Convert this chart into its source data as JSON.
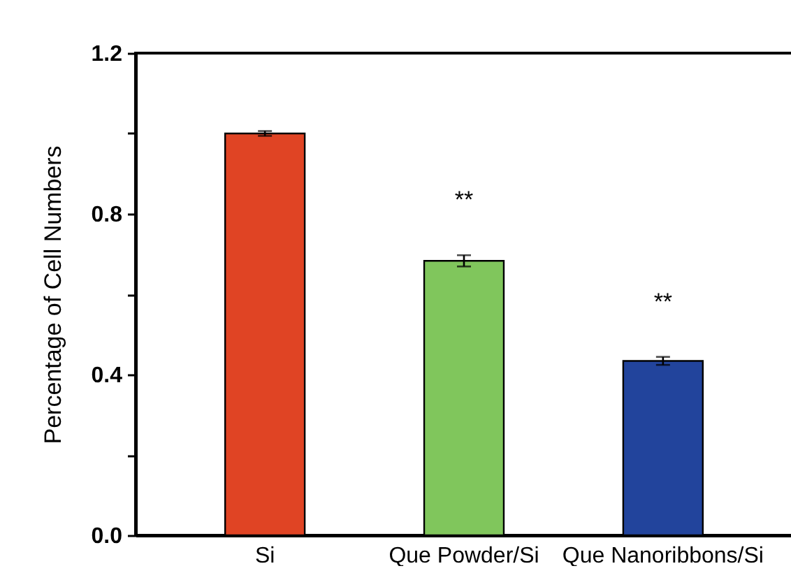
{
  "chart_data": {
    "type": "bar",
    "ylabel": "Percentage of Cell Numbers",
    "categories": [
      "Si",
      "Que Powder/Si",
      "Que Nanoribbons/Si"
    ],
    "values": [
      1.0,
      0.683,
      0.434
    ],
    "colors": [
      "#e04424",
      "#80c65c",
      "#22449c"
    ],
    "errors": [
      0.006,
      0.014,
      0.01
    ],
    "ylim": [
      0,
      1.2
    ],
    "yticks": [
      {
        "value": 0,
        "label": "0.0"
      },
      {
        "value": 0.2,
        "label": null
      },
      0.4,
      {
        "value": 0.6,
        "label": null
      },
      0.8,
      {
        "value": 1.0,
        "label": null
      },
      1.2
    ],
    "annotations": [
      "**",
      "**"
    ],
    "grid": false
  }
}
